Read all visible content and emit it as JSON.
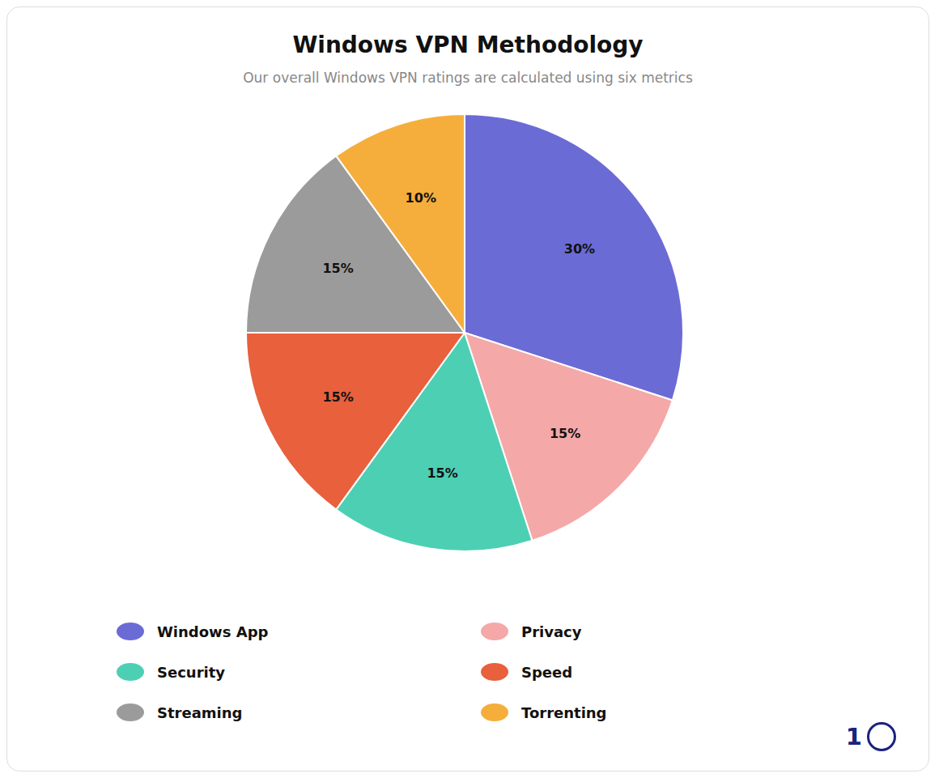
{
  "chart_data": {
    "type": "pie",
    "title": "Windows VPN Methodology",
    "subtitle": "Our overall Windows VPN ratings are calculated using six metrics",
    "categories": [
      "Windows App",
      "Privacy",
      "Security",
      "Speed",
      "Streaming",
      "Torrenting"
    ],
    "values": [
      30,
      15,
      15,
      15,
      15,
      10
    ],
    "value_labels": [
      "30%",
      "15%",
      "15%",
      "15%",
      "15%",
      "10%"
    ],
    "colors": [
      "#6B6BD6",
      "#F4A8A8",
      "#4DCFB4",
      "#E8603C",
      "#9B9B9B",
      "#F5AE3C"
    ],
    "data_labels": true,
    "legend": "bottom",
    "annotations": [
      "1"
    ]
  }
}
